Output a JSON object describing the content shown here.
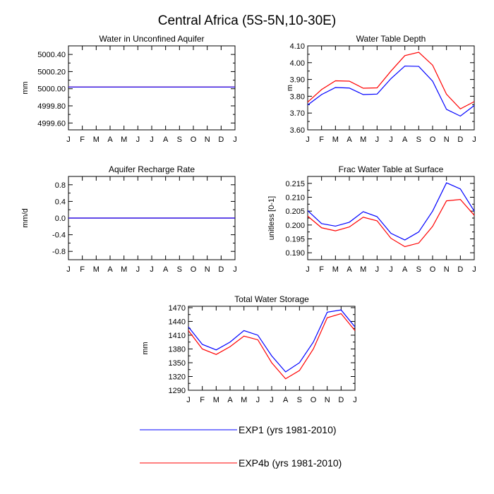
{
  "figure_title": "Central Africa (5S-5N,10-30E)",
  "months": [
    "J",
    "F",
    "M",
    "A",
    "M",
    "J",
    "J",
    "A",
    "S",
    "O",
    "N",
    "D",
    "J"
  ],
  "colors": {
    "exp1": "#0000ff",
    "exp4b": "#ff0000",
    "axis": "#000000"
  },
  "legend": [
    {
      "label": "EXP1 (yrs 1981-2010)",
      "color": "#0000ff"
    },
    {
      "label": "EXP4b (yrs 1981-2010)",
      "color": "#ff0000"
    }
  ],
  "chart_data": [
    {
      "type": "line",
      "title": "Water in Unconfined Aquifer",
      "ylabel": "mm",
      "xlabel": "",
      "ylim": [
        4999.52,
        5000.5
      ],
      "yticks": [
        4999.6,
        4999.8,
        5000.0,
        5000.2,
        5000.4
      ],
      "ytick_labels": [
        "4999.60",
        "4999.80",
        "5000.00",
        "5000.20",
        "5000.40"
      ],
      "categories": [
        "J",
        "F",
        "M",
        "A",
        "M",
        "J",
        "J",
        "A",
        "S",
        "O",
        "N",
        "D",
        "J"
      ],
      "series": [
        {
          "name": "EXP1 (yrs 1981-2010)",
          "color": "#0000ff",
          "values": [
            5000.02,
            5000.02,
            5000.02,
            5000.02,
            5000.02,
            5000.02,
            5000.02,
            5000.02,
            5000.02,
            5000.02,
            5000.02,
            5000.02,
            5000.02
          ]
        },
        {
          "name": "EXP4b (yrs 1981-2010)",
          "color": "#ff0000",
          "values": [
            5000.02,
            5000.02,
            5000.02,
            5000.02,
            5000.02,
            5000.02,
            5000.02,
            5000.02,
            5000.02,
            5000.02,
            5000.02,
            5000.02,
            5000.02
          ]
        }
      ],
      "grid": false
    },
    {
      "type": "line",
      "title": "Water Table Depth",
      "ylabel": "m",
      "xlabel": "",
      "ylim": [
        3.6,
        4.1
      ],
      "yticks": [
        3.6,
        3.7,
        3.8,
        3.9,
        4.0,
        4.1
      ],
      "ytick_labels": [
        "3.60",
        "3.70",
        "3.80",
        "3.90",
        "4.00",
        "4.10"
      ],
      "categories": [
        "J",
        "F",
        "M",
        "A",
        "M",
        "J",
        "J",
        "A",
        "S",
        "O",
        "N",
        "D",
        "J"
      ],
      "series": [
        {
          "name": "EXP1 (yrs 1981-2010)",
          "color": "#0000ff",
          "values": [
            3.748,
            3.81,
            3.852,
            3.849,
            3.81,
            3.813,
            3.905,
            3.98,
            3.978,
            3.89,
            3.722,
            3.682,
            3.745
          ]
        },
        {
          "name": "EXP4b (yrs 1981-2010)",
          "color": "#ff0000",
          "values": [
            3.765,
            3.84,
            3.892,
            3.89,
            3.848,
            3.85,
            3.95,
            4.042,
            4.062,
            3.985,
            3.812,
            3.725,
            3.768
          ]
        }
      ],
      "grid": false
    },
    {
      "type": "line",
      "title": "Aquifer Recharge Rate",
      "ylabel": "mm/d",
      "xlabel": "",
      "ylim": [
        -1.0,
        1.0
      ],
      "yticks": [
        -0.8,
        -0.4,
        0.0,
        0.4,
        0.8
      ],
      "ytick_labels": [
        "-0.8",
        "-0.4",
        "0.0",
        "0.4",
        "0.8"
      ],
      "categories": [
        "J",
        "F",
        "M",
        "A",
        "M",
        "J",
        "J",
        "A",
        "S",
        "O",
        "N",
        "D",
        "J"
      ],
      "series": [
        {
          "name": "EXP1 (yrs 1981-2010)",
          "color": "#0000ff",
          "values": [
            0,
            0,
            0,
            0,
            0,
            0,
            0,
            0,
            0,
            0,
            0,
            0,
            0
          ]
        },
        {
          "name": "EXP4b (yrs 1981-2010)",
          "color": "#ff0000",
          "values": [
            0,
            0,
            0,
            0,
            0,
            0,
            0,
            0,
            0,
            0,
            0,
            0,
            0
          ]
        }
      ],
      "grid": false
    },
    {
      "type": "line",
      "title": "Frac Water Table at Surface",
      "ylabel": "unitless [0-1]",
      "xlabel": "",
      "ylim": [
        0.1875,
        0.2175
      ],
      "yticks": [
        0.19,
        0.195,
        0.2,
        0.205,
        0.21,
        0.215
      ],
      "ytick_labels": [
        "0.190",
        "0.195",
        "0.200",
        "0.205",
        "0.210",
        "0.215"
      ],
      "categories": [
        "J",
        "F",
        "M",
        "A",
        "M",
        "J",
        "J",
        "A",
        "S",
        "O",
        "N",
        "D",
        "J"
      ],
      "series": [
        {
          "name": "EXP1 (yrs 1981-2010)",
          "color": "#0000ff",
          "values": [
            0.2052,
            0.2005,
            0.1996,
            0.201,
            0.2048,
            0.203,
            0.197,
            0.1946,
            0.1975,
            0.205,
            0.2152,
            0.213,
            0.205
          ]
        },
        {
          "name": "EXP4b (yrs 1981-2010)",
          "color": "#ff0000",
          "values": [
            0.2032,
            0.199,
            0.1979,
            0.1993,
            0.2028,
            0.2015,
            0.1952,
            0.1922,
            0.1935,
            0.1995,
            0.2087,
            0.2092,
            0.2035
          ]
        }
      ],
      "grid": false
    },
    {
      "type": "line",
      "title": "Total Water Storage",
      "ylabel": "mm",
      "xlabel": "",
      "ylim": [
        1290,
        1473
      ],
      "yticks": [
        1290,
        1320,
        1350,
        1380,
        1410,
        1440,
        1470
      ],
      "ytick_labels": [
        "1290",
        "1320",
        "1350",
        "1380",
        "1410",
        "1440",
        "1470"
      ],
      "categories": [
        "J",
        "F",
        "M",
        "A",
        "M",
        "J",
        "J",
        "A",
        "S",
        "O",
        "N",
        "D",
        "J"
      ],
      "series": [
        {
          "name": "EXP1 (yrs 1981-2010)",
          "color": "#0000ff",
          "values": [
            1428,
            1390,
            1378,
            1395,
            1420,
            1410,
            1365,
            1330,
            1350,
            1395,
            1460,
            1465,
            1428
          ]
        },
        {
          "name": "EXP4b (yrs 1981-2010)",
          "color": "#ff0000",
          "values": [
            1420,
            1380,
            1368,
            1385,
            1408,
            1400,
            1350,
            1315,
            1333,
            1380,
            1448,
            1457,
            1420
          ]
        }
      ],
      "grid": false
    }
  ]
}
